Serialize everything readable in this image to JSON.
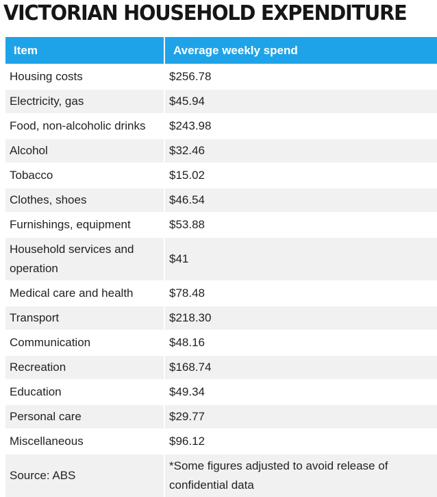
{
  "title": "VICTORIAN HOUSEHOLD EXPENDITURE",
  "chart_data": {
    "type": "table",
    "title": "VICTORIAN HOUSEHOLD EXPENDITURE",
    "columns": [
      "Item",
      "Average weekly spend"
    ],
    "rows": [
      [
        "Housing costs",
        "$256.78"
      ],
      [
        "Electricity, gas",
        "$45.94"
      ],
      [
        "Food, non-alcoholic drinks",
        "$243.98"
      ],
      [
        "Alcohol",
        "$32.46"
      ],
      [
        "Tobacco",
        "$15.02"
      ],
      [
        "Clothes, shoes",
        "$46.54"
      ],
      [
        "Furnishings, equipment",
        "$53.88"
      ],
      [
        "Household services and operation",
        "$41"
      ],
      [
        "Medical care and health",
        "$78.48"
      ],
      [
        "Transport",
        "$218.30"
      ],
      [
        "Communication",
        "$48.16"
      ],
      [
        "Recreation",
        "$168.74"
      ],
      [
        "Education",
        "$49.34"
      ],
      [
        "Personal care",
        "$29.77"
      ],
      [
        "Miscellaneous",
        "$96.12"
      ],
      [
        "Source: ABS",
        "*Some figures adjusted to avoid release of confidential data"
      ]
    ]
  },
  "colors": {
    "header_bg": "#1fa3e8",
    "header_text": "#ffffff",
    "row_alt_bg": "#f1f1f1"
  }
}
